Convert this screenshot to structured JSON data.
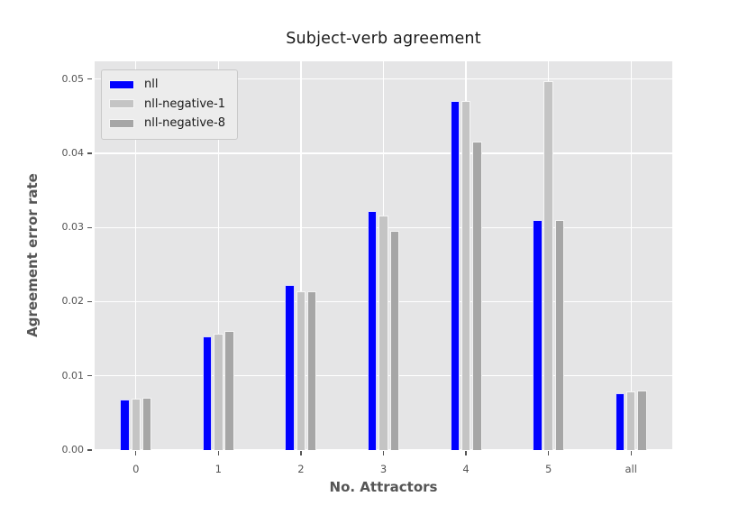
{
  "chart_data": {
    "type": "bar",
    "title": "Subject-verb agreement",
    "xlabel": "No. Attractors",
    "ylabel": "Agreement error rate",
    "categories": [
      "0",
      "1",
      "2",
      "3",
      "4",
      "5",
      "all"
    ],
    "series": [
      {
        "name": "nll",
        "color": "#0000ff",
        "values": [
          0.0068,
          0.0153,
          0.0223,
          0.0322,
          0.047,
          0.031,
          0.0077
        ]
      },
      {
        "name": "nll-negative-1",
        "color": "#c4c4c4",
        "values": [
          0.0069,
          0.0157,
          0.0214,
          0.0316,
          0.047,
          0.0497,
          0.0079
        ]
      },
      {
        "name": "nll-negative-8",
        "color": "#a6a6a6",
        "values": [
          0.007,
          0.016,
          0.0214,
          0.0296,
          0.0416,
          0.031,
          0.008
        ]
      }
    ],
    "yticks": [
      0.0,
      0.01,
      0.02,
      0.03,
      0.04,
      0.05
    ],
    "ytick_labels": [
      "0.00",
      "0.01",
      "0.02",
      "0.03",
      "0.04",
      "0.05"
    ],
    "ylim": [
      0,
      0.0524
    ],
    "grid": true,
    "gridline_color": "#ffffff",
    "plot_background": "#e5e5e6",
    "tick_label_color": "#555555",
    "legend_position": "upper left"
  }
}
